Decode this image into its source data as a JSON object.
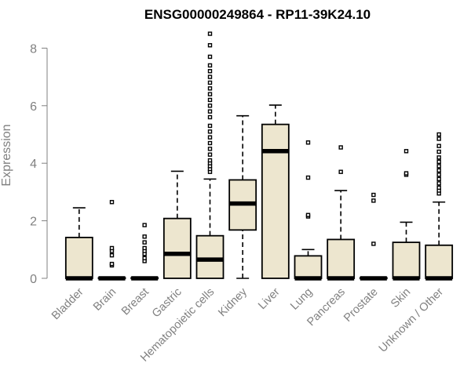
{
  "chart_data": {
    "type": "boxplot",
    "title": "ENSG00000249864 - RP11-39K24.10",
    "xlabel": "",
    "ylabel": "Expression",
    "ylim": [
      0,
      8.6
    ],
    "yticks": [
      0,
      2,
      4,
      6,
      8
    ],
    "box_fill": "#ede6cf",
    "axis_color": "#808080",
    "categories": [
      "Bladder",
      "Brain",
      "Breast",
      "Gastric",
      "Hematopoietic cells",
      "Kidney",
      "Liver",
      "Lung",
      "Pancreas",
      "Prostate",
      "Skin",
      "Unknown / Other"
    ],
    "boxes": [
      {
        "name": "Bladder",
        "whisker_low": 0,
        "q1": 0,
        "median": 0,
        "q3": 1.42,
        "whisker_high": 2.45,
        "outliers": []
      },
      {
        "name": "Brain",
        "whisker_low": 0,
        "q1": 0,
        "median": 0,
        "q3": 0.02,
        "whisker_high": 0.02,
        "outliers": [
          0.45,
          0.5,
          0.8,
          0.95,
          1.05,
          2.65
        ]
      },
      {
        "name": "Breast",
        "whisker_low": 0,
        "q1": 0,
        "median": 0,
        "q3": 0.02,
        "whisker_high": 0.02,
        "outliers": [
          0.6,
          0.7,
          0.85,
          0.95,
          1.05,
          1.25,
          1.45,
          1.85
        ]
      },
      {
        "name": "Gastric",
        "whisker_low": 0,
        "q1": 0,
        "median": 0.85,
        "q3": 2.08,
        "whisker_high": 3.72,
        "outliers": []
      },
      {
        "name": "Hematopoietic cells",
        "whisker_low": 0,
        "q1": 0,
        "median": 0.65,
        "q3": 1.48,
        "whisker_high": 3.45,
        "outliers": [
          3.7,
          3.8,
          3.9,
          4.0,
          4.1,
          4.3,
          4.5,
          4.7,
          4.9,
          5.1,
          5.3,
          5.6,
          5.8,
          6.0,
          6.2,
          6.4,
          6.6,
          6.8,
          7.0,
          7.2,
          7.4,
          7.7,
          8.1,
          8.5
        ]
      },
      {
        "name": "Kidney",
        "whisker_low": 0,
        "q1": 1.68,
        "median": 2.6,
        "q3": 3.42,
        "whisker_high": 5.65,
        "outliers": []
      },
      {
        "name": "Liver",
        "whisker_low": 0,
        "q1": 0,
        "median": 4.42,
        "q3": 5.35,
        "whisker_high": 6.02,
        "outliers": []
      },
      {
        "name": "Lung",
        "whisker_low": 0,
        "q1": 0,
        "median": 0,
        "q3": 0.78,
        "whisker_high": 1.0,
        "outliers": [
          2.15,
          2.2,
          3.5,
          4.72
        ]
      },
      {
        "name": "Pancreas",
        "whisker_low": 0,
        "q1": 0,
        "median": 0,
        "q3": 1.35,
        "whisker_high": 3.05,
        "outliers": [
          3.7,
          4.55
        ]
      },
      {
        "name": "Prostate",
        "whisker_low": 0,
        "q1": 0,
        "median": 0,
        "q3": 0.02,
        "whisker_high": 0.02,
        "outliers": [
          1.2,
          2.7,
          2.9
        ]
      },
      {
        "name": "Skin",
        "whisker_low": 0,
        "q1": 0,
        "median": 0,
        "q3": 1.25,
        "whisker_high": 1.95,
        "outliers": [
          3.6,
          3.65,
          4.42
        ]
      },
      {
        "name": "Unknown / Other",
        "whisker_low": 0,
        "q1": 0,
        "median": 0,
        "q3": 1.15,
        "whisker_high": 2.65,
        "outliers": [
          2.95,
          3.05,
          3.15,
          3.3,
          3.45,
          3.6,
          3.75,
          3.9,
          4.05,
          4.2,
          4.4,
          4.6,
          4.85,
          5.0
        ]
      }
    ]
  }
}
